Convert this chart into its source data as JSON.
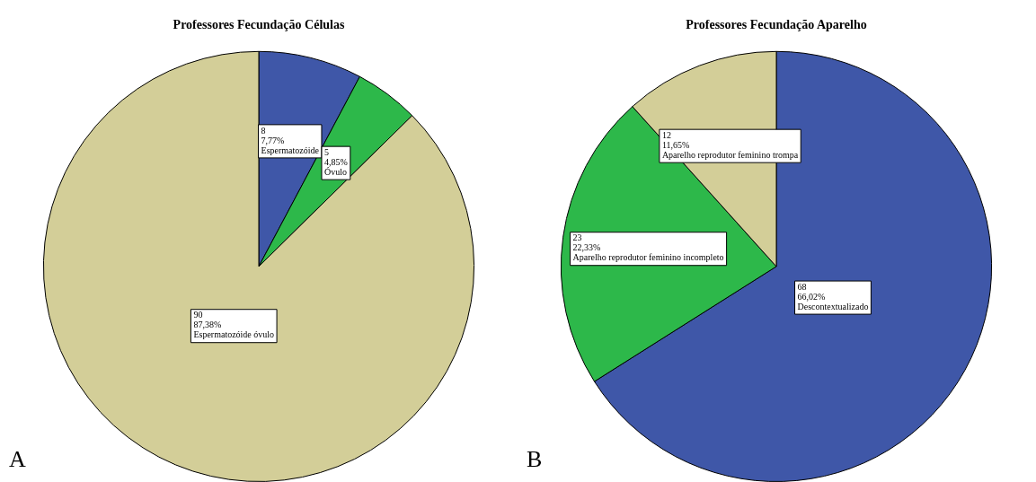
{
  "chart_data": [
    {
      "type": "pie",
      "title": "Professores Fecundação Células",
      "categories": [
        "Espermatozóide",
        "Óvulo",
        "Espermatozóide óvulo"
      ],
      "values": [
        7.77,
        4.85,
        87.38
      ],
      "colors": [
        "#3f57a8",
        "#2db84a",
        "#d3ce98"
      ],
      "value_labels": [
        "8\n7,77%",
        "5\n4,85%",
        "90\n87,38%"
      ],
      "annotations": [
        "A"
      ]
    },
    {
      "type": "pie",
      "title": "Professores Fecundação Aparelho",
      "categories": [
        "Descontextualizado",
        "Aparelho reprodutor feminino incompleto",
        "Aparelho reprodutor feminino trompa"
      ],
      "values": [
        66.02,
        22.33,
        11.65
      ],
      "colors": [
        "#3f57a8",
        "#2db84a",
        "#d3ce98"
      ],
      "value_labels": [
        "68\n66,02%",
        "23\n22,33%",
        "12\n11,65%"
      ],
      "annotations": [
        "B"
      ]
    }
  ]
}
